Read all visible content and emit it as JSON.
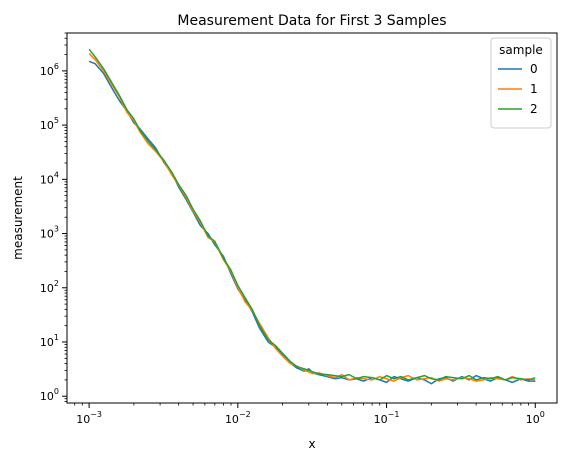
{
  "chart_data": {
    "type": "line",
    "title": "Measurement Data for First 3 Samples",
    "xlabel": "x",
    "ylabel": "measurement",
    "xscale": "log",
    "yscale": "log",
    "xlim": [
      0.00071,
      1.4
    ],
    "ylim": [
      0.75,
      5000000
    ],
    "x_tick_labels": [
      "10^-3",
      "10^-2",
      "10^-1",
      "10^0"
    ],
    "y_tick_labels": [
      "10^0",
      "10^1",
      "10^2",
      "10^3",
      "10^4",
      "10^5",
      "10^6"
    ],
    "grid": false,
    "legend": {
      "title": "sample",
      "placement": "upper right"
    },
    "series": [
      {
        "name": "0",
        "color": "#1f77b4",
        "x": [
          0.001,
          0.0011,
          0.00125,
          0.0014,
          0.0016,
          0.0018,
          0.002,
          0.0022,
          0.0025,
          0.0028,
          0.0032,
          0.0036,
          0.004,
          0.0045,
          0.005,
          0.0056,
          0.0063,
          0.007,
          0.008,
          0.009,
          0.01,
          0.0112,
          0.0125,
          0.014,
          0.016,
          0.018,
          0.02,
          0.0225,
          0.025,
          0.028,
          0.03,
          0.032,
          0.035,
          0.04,
          0.045,
          0.05,
          0.056,
          0.063,
          0.07,
          0.08,
          0.09,
          0.1,
          0.112,
          0.125,
          0.14,
          0.16,
          0.18,
          0.2,
          0.225,
          0.25,
          0.28,
          0.32,
          0.36,
          0.4,
          0.45,
          0.5,
          0.56,
          0.63,
          0.7,
          0.8,
          0.9,
          1.0
        ],
        "y": [
          1500000,
          1350000,
          900000,
          520000,
          280000,
          180000,
          110000,
          85000,
          55000,
          38000,
          20000,
          13000,
          7200,
          4200,
          2500,
          1400,
          1000,
          620,
          380,
          180,
          95,
          60,
          36,
          18,
          10,
          8,
          5.8,
          4.1,
          3.3,
          2.9,
          3.2,
          2.7,
          2.5,
          2.3,
          2.1,
          2.2,
          2.0,
          2.1,
          1.9,
          2.2,
          2.0,
          1.8,
          2.3,
          2.1,
          1.9,
          2.2,
          2.0,
          1.7,
          2.1,
          2.2,
          1.9,
          2.3,
          2.0,
          2.4,
          2.1,
          1.9,
          2.2,
          2.0,
          1.8,
          2.1,
          1.9,
          1.9
        ]
      },
      {
        "name": "1",
        "color": "#ff7f0e",
        "x": [
          0.001,
          0.0011,
          0.00125,
          0.0014,
          0.0016,
          0.0018,
          0.002,
          0.0022,
          0.0025,
          0.0028,
          0.0032,
          0.0036,
          0.004,
          0.0045,
          0.005,
          0.0056,
          0.0063,
          0.007,
          0.008,
          0.009,
          0.01,
          0.0112,
          0.0125,
          0.014,
          0.016,
          0.018,
          0.02,
          0.0225,
          0.025,
          0.028,
          0.03,
          0.032,
          0.035,
          0.04,
          0.045,
          0.05,
          0.056,
          0.063,
          0.07,
          0.08,
          0.09,
          0.1,
          0.112,
          0.125,
          0.14,
          0.16,
          0.18,
          0.2,
          0.225,
          0.25,
          0.28,
          0.32,
          0.36,
          0.4,
          0.45,
          0.5,
          0.56,
          0.63,
          0.7,
          0.8,
          0.9,
          1.0
        ],
        "y": [
          2100000,
          1600000,
          1000000,
          600000,
          330000,
          170000,
          120000,
          75000,
          45000,
          33000,
          21000,
          12000,
          7800,
          4600,
          2600,
          1600,
          850,
          700,
          330,
          200,
          100,
          55,
          38,
          22,
          12,
          7.5,
          5.5,
          4.0,
          3.6,
          3.0,
          2.8,
          2.6,
          2.7,
          2.4,
          2.2,
          2.5,
          2.0,
          2.2,
          2.1,
          2.0,
          2.3,
          2.1,
          1.9,
          2.2,
          2.4,
          2.0,
          2.1,
          2.2,
          1.9,
          2.1,
          2.0,
          2.2,
          2.1,
          1.9,
          2.0,
          2.2,
          2.1,
          2.0,
          2.3,
          2.0,
          2.1,
          2.0
        ]
      },
      {
        "name": "2",
        "color": "#2ca02c",
        "x": [
          0.001,
          0.0011,
          0.00125,
          0.0014,
          0.0016,
          0.0018,
          0.002,
          0.0022,
          0.0025,
          0.0028,
          0.0032,
          0.0036,
          0.004,
          0.0045,
          0.005,
          0.0056,
          0.0063,
          0.007,
          0.008,
          0.009,
          0.01,
          0.0112,
          0.0125,
          0.014,
          0.016,
          0.018,
          0.02,
          0.0225,
          0.025,
          0.028,
          0.03,
          0.032,
          0.035,
          0.04,
          0.045,
          0.05,
          0.056,
          0.063,
          0.07,
          0.08,
          0.09,
          0.1,
          0.112,
          0.125,
          0.14,
          0.16,
          0.18,
          0.2,
          0.225,
          0.25,
          0.28,
          0.32,
          0.36,
          0.4,
          0.45,
          0.5,
          0.56,
          0.63,
          0.7,
          0.8,
          0.9,
          1.0
        ],
        "y": [
          2500000,
          1800000,
          1100000,
          650000,
          350000,
          190000,
          130000,
          80000,
          50000,
          35000,
          22000,
          13500,
          8000,
          5000,
          2800,
          1700,
          900,
          720,
          350,
          210,
          110,
          65,
          40,
          20,
          11,
          8.5,
          6.2,
          4.4,
          3.5,
          3.2,
          3.0,
          2.8,
          2.6,
          2.5,
          2.4,
          2.3,
          2.5,
          2.1,
          2.3,
          2.2,
          2.0,
          2.4,
          2.1,
          2.3,
          2.0,
          2.2,
          2.4,
          2.1,
          2.0,
          2.3,
          2.2,
          2.1,
          2.4,
          2.0,
          2.2,
          2.1,
          2.3,
          2.0,
          2.2,
          2.1,
          2.0,
          2.2
        ]
      }
    ]
  }
}
